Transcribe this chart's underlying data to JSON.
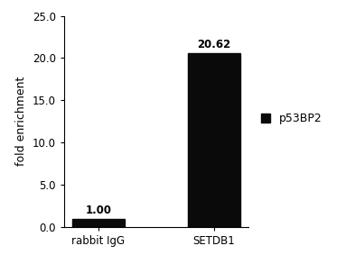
{
  "categories": [
    "rabbit IgG",
    "SETDB1"
  ],
  "values": [
    1.0,
    20.62
  ],
  "bar_color": "#0a0a0a",
  "bar_labels": [
    "1.00",
    "20.62"
  ],
  "ylabel": "fold enrichment",
  "ylim": [
    0,
    25.0
  ],
  "yticks": [
    0.0,
    5.0,
    10.0,
    15.0,
    20.0,
    25.0
  ],
  "legend_label": "p53BP2",
  "legend_color": "#0a0a0a",
  "bar_width": 0.45,
  "figsize": [
    3.93,
    2.93
  ],
  "dpi": 100,
  "background_color": "#ffffff",
  "label_fontsize": 9,
  "tick_fontsize": 8.5,
  "ylabel_fontsize": 9,
  "annotation_fontsize": 8.5
}
